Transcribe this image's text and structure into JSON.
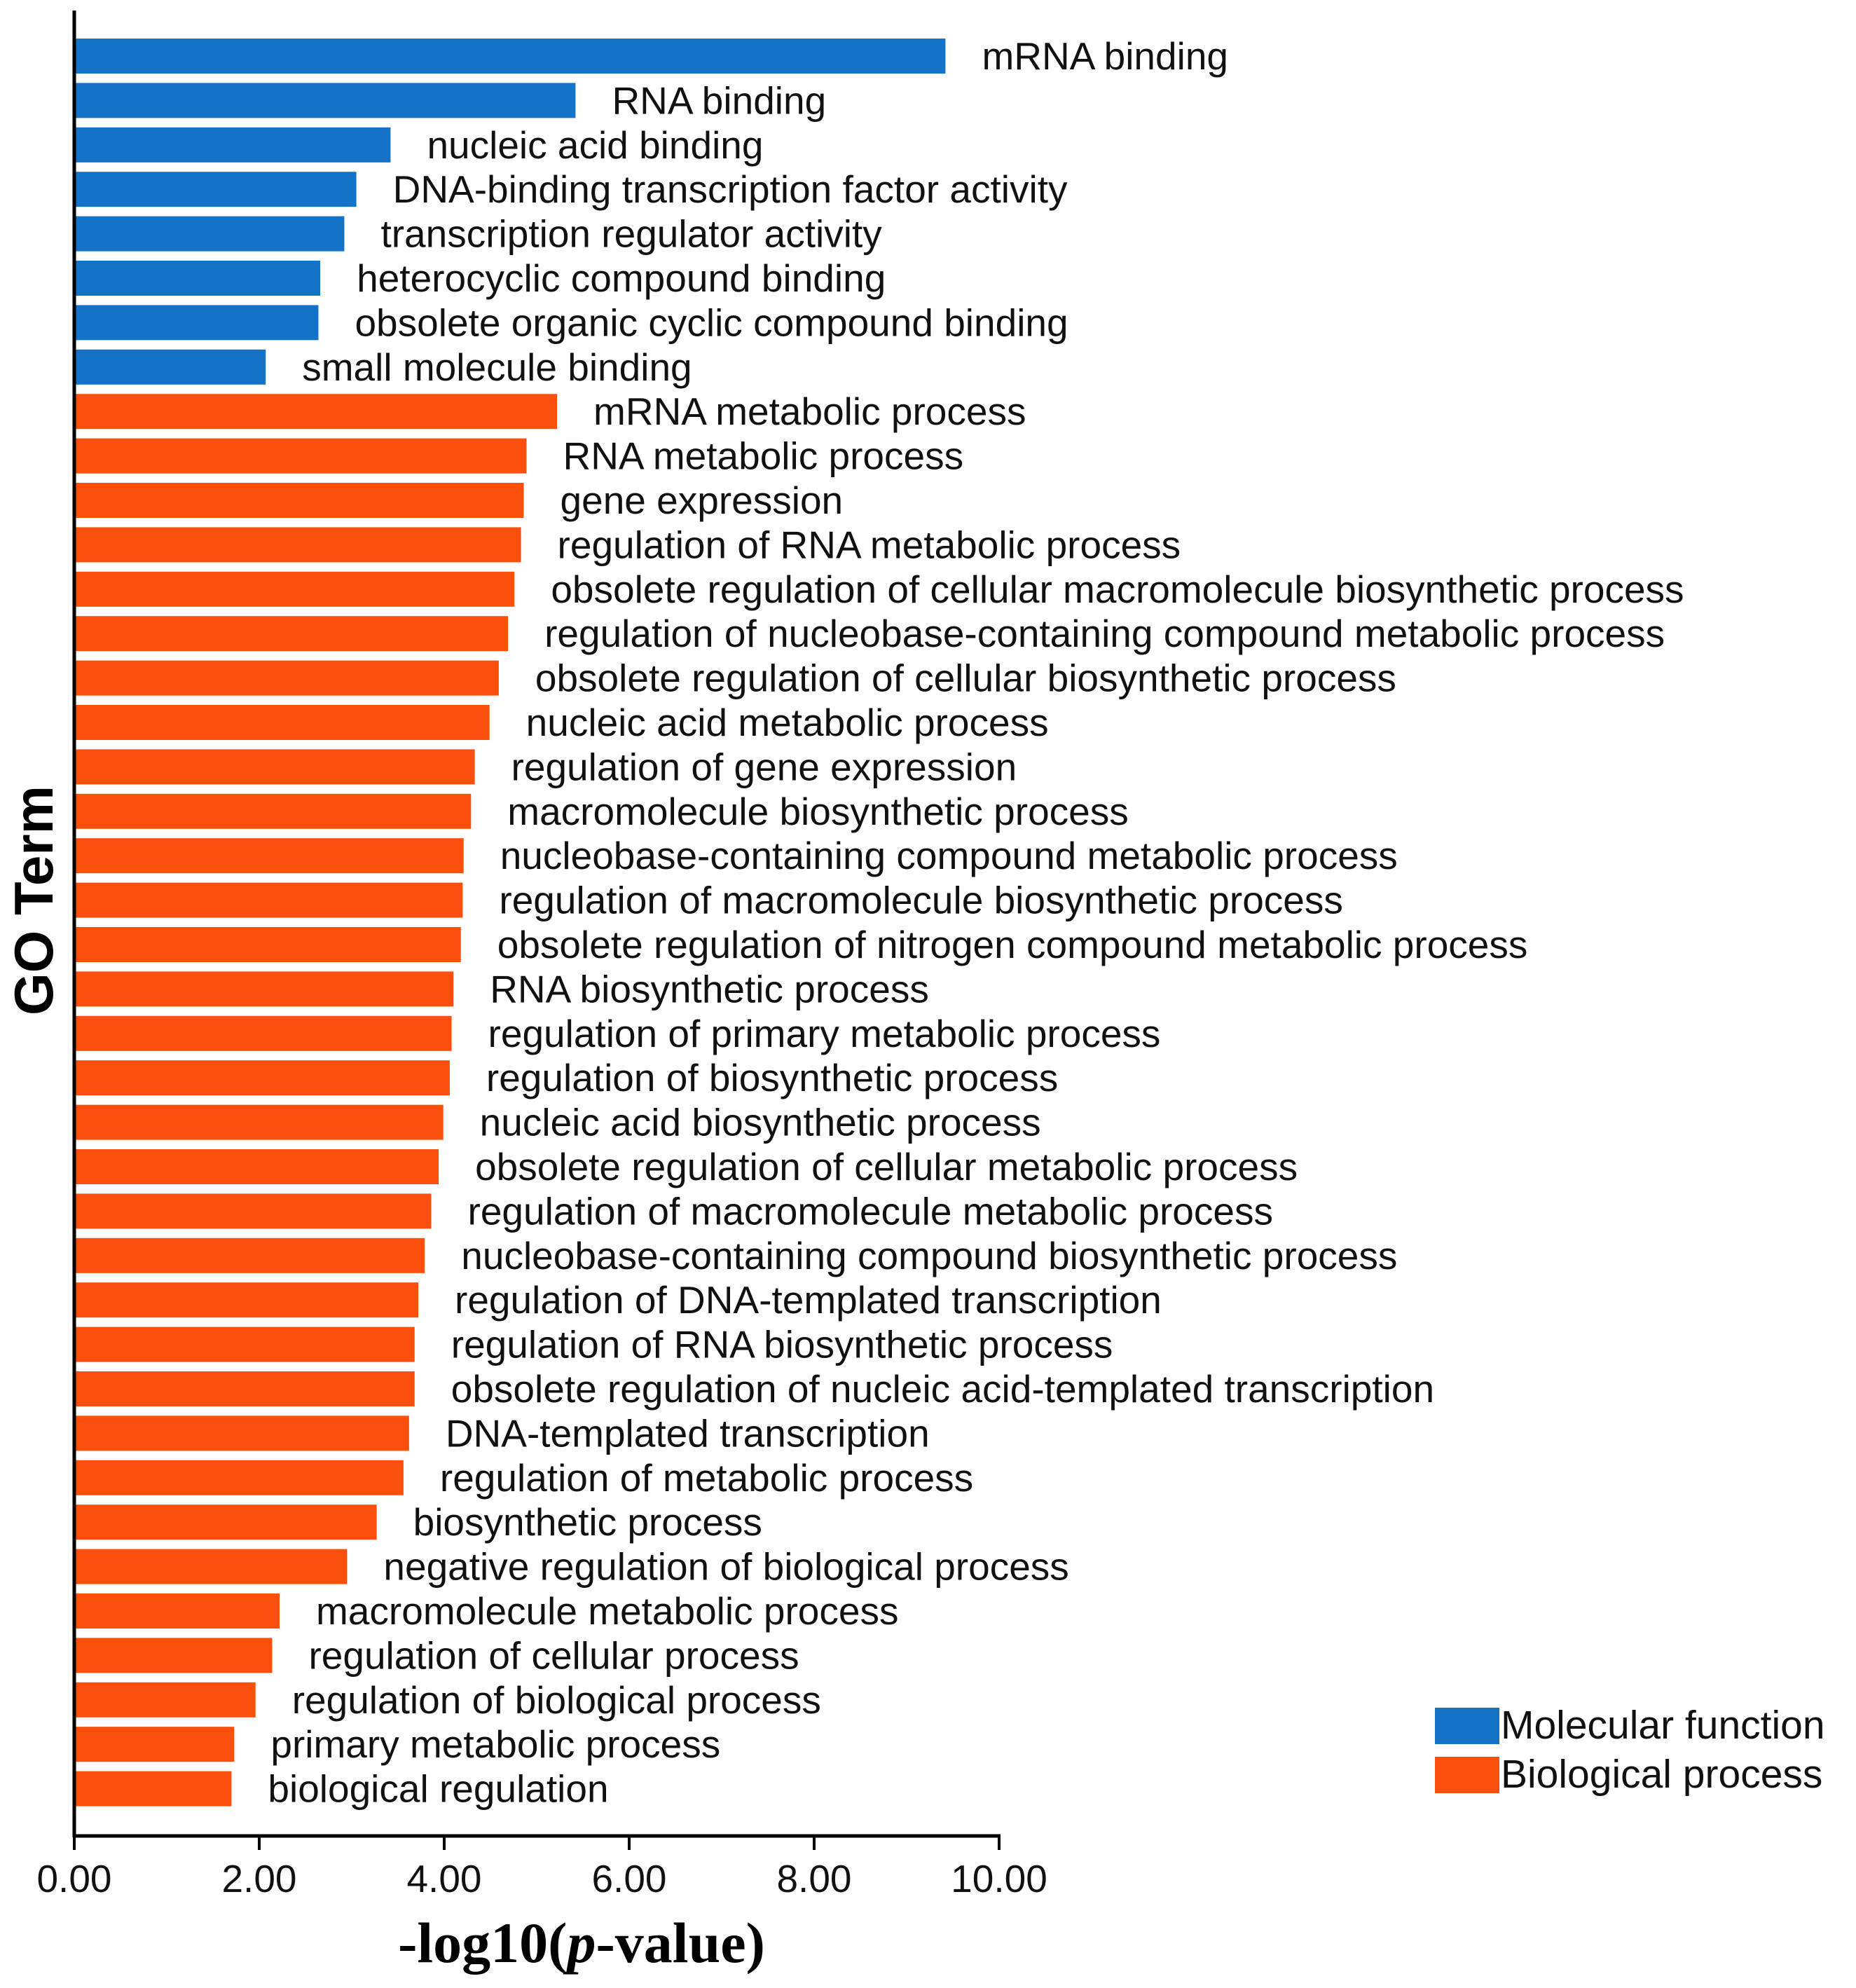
{
  "chart_data": {
    "type": "bar",
    "orientation": "horizontal",
    "xlabel_prefix": "-log10(",
    "xlabel_italic": "p",
    "xlabel_suffix": "-value)",
    "ylabel": "GO Term",
    "xlim": [
      0,
      10
    ],
    "xticks": [
      "0.00",
      "2.00",
      "4.00",
      "6.00",
      "8.00",
      "10.00"
    ],
    "legend_position": "bottom-right",
    "series": [
      {
        "name": "Molecular function",
        "color": "#1473C7"
      },
      {
        "name": "Biological process",
        "color": "#FB4F0C"
      }
    ],
    "categories": [
      "mRNA binding",
      "RNA binding",
      "nucleic acid binding",
      "DNA-binding transcription factor activity",
      "transcription regulator activity",
      "heterocyclic compound binding",
      "obsolete organic cyclic compound binding",
      "small molecule binding",
      "mRNA metabolic process",
      "RNA metabolic process",
      "gene expression",
      "regulation of RNA metabolic process",
      "obsolete regulation of cellular macromolecule biosynthetic process",
      "regulation of nucleobase-containing compound metabolic process",
      "obsolete regulation of cellular biosynthetic process",
      "nucleic acid metabolic process",
      "regulation of gene expression",
      "macromolecule biosynthetic process",
      "nucleobase-containing compound metabolic process",
      "regulation of macromolecule biosynthetic process",
      "obsolete regulation of nitrogen compound metabolic process",
      "RNA biosynthetic process",
      "regulation of primary metabolic process",
      "regulation of biosynthetic process",
      "nucleic acid biosynthetic process",
      "obsolete regulation of cellular metabolic process",
      "regulation of macromolecule metabolic process",
      "nucleobase-containing compound biosynthetic process",
      "regulation of DNA-templated transcription",
      "regulation of RNA biosynthetic process",
      "obsolete regulation of nucleic acid-templated transcription",
      "DNA-templated transcription",
      "regulation of metabolic process",
      "biosynthetic process",
      "negative regulation of biological process",
      "macromolecule metabolic process",
      "regulation of cellular process",
      "regulation of biological process",
      "primary metabolic process",
      "biological regulation"
    ],
    "values": [
      9.42,
      5.42,
      3.42,
      3.05,
      2.92,
      2.66,
      2.64,
      2.07,
      5.22,
      4.89,
      4.86,
      4.83,
      4.76,
      4.69,
      4.59,
      4.49,
      4.33,
      4.29,
      4.21,
      4.2,
      4.18,
      4.1,
      4.08,
      4.06,
      3.99,
      3.94,
      3.86,
      3.79,
      3.72,
      3.68,
      3.68,
      3.62,
      3.56,
      3.27,
      2.95,
      2.22,
      2.14,
      1.96,
      1.73,
      1.7
    ],
    "groups": [
      "Molecular function",
      "Molecular function",
      "Molecular function",
      "Molecular function",
      "Molecular function",
      "Molecular function",
      "Molecular function",
      "Molecular function",
      "Biological process",
      "Biological process",
      "Biological process",
      "Biological process",
      "Biological process",
      "Biological process",
      "Biological process",
      "Biological process",
      "Biological process",
      "Biological process",
      "Biological process",
      "Biological process",
      "Biological process",
      "Biological process",
      "Biological process",
      "Biological process",
      "Biological process",
      "Biological process",
      "Biological process",
      "Biological process",
      "Biological process",
      "Biological process",
      "Biological process",
      "Biological process",
      "Biological process",
      "Biological process",
      "Biological process",
      "Biological process",
      "Biological process",
      "Biological process",
      "Biological process",
      "Biological process"
    ]
  }
}
